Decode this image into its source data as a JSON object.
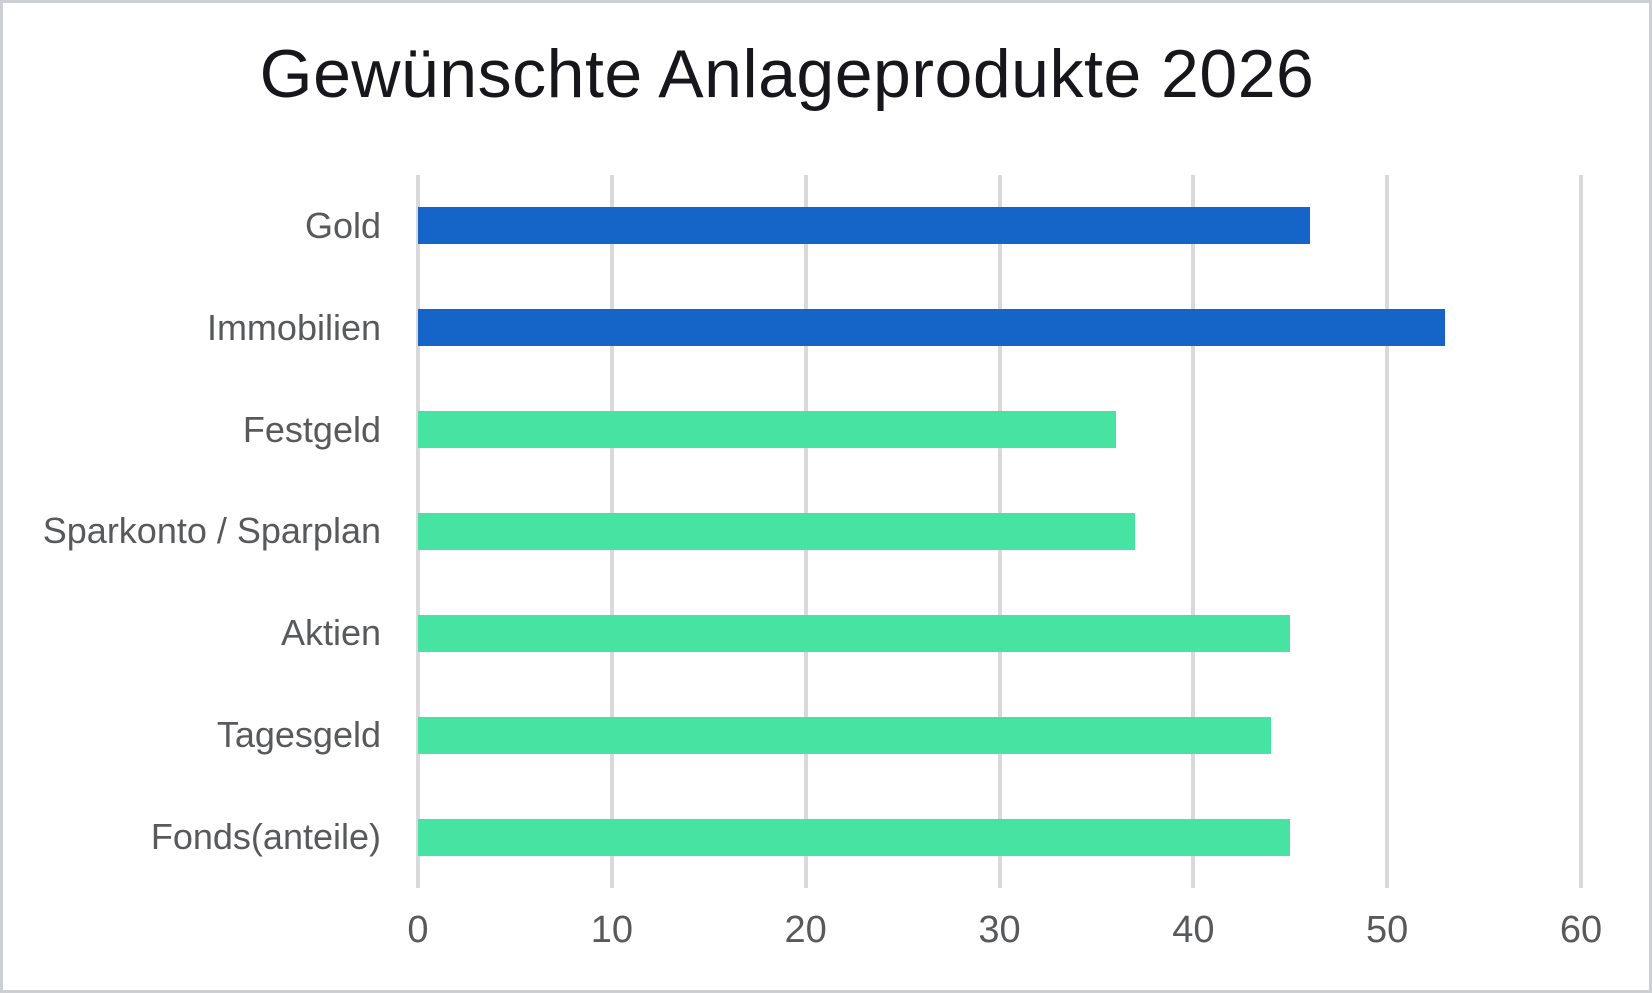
{
  "title": "Gewünschte Anlageprodukte 2026",
  "chart_data": {
    "type": "bar",
    "orientation": "horizontal",
    "title": "Gewünschte Anlageprodukte 2026",
    "categories": [
      "Gold",
      "Immobilien",
      "Festgeld",
      "Sparkonto / Sparplan",
      "Aktien",
      "Tagesgeld",
      "Fonds(anteile)"
    ],
    "values": [
      46,
      53,
      36,
      37,
      45,
      44,
      45
    ],
    "bar_colors": [
      "#1565C8",
      "#1565C8",
      "#47E3A3",
      "#47E3A3",
      "#47E3A3",
      "#47E3A3",
      "#47E3A3"
    ],
    "xlabel": "",
    "ylabel": "",
    "xlim": [
      0,
      60
    ],
    "x_ticks": [
      "0",
      "10",
      "20",
      "30",
      "40",
      "50",
      "60"
    ],
    "grid": true,
    "legend": false
  },
  "colors": {
    "blue": "#1565C8",
    "green": "#47E3A3",
    "gridline": "#D9D9D9",
    "axis_label": "#58595B",
    "title_text": "#17171B",
    "frame_border": "#CDD0D3",
    "background": "#FFFFFF"
  }
}
